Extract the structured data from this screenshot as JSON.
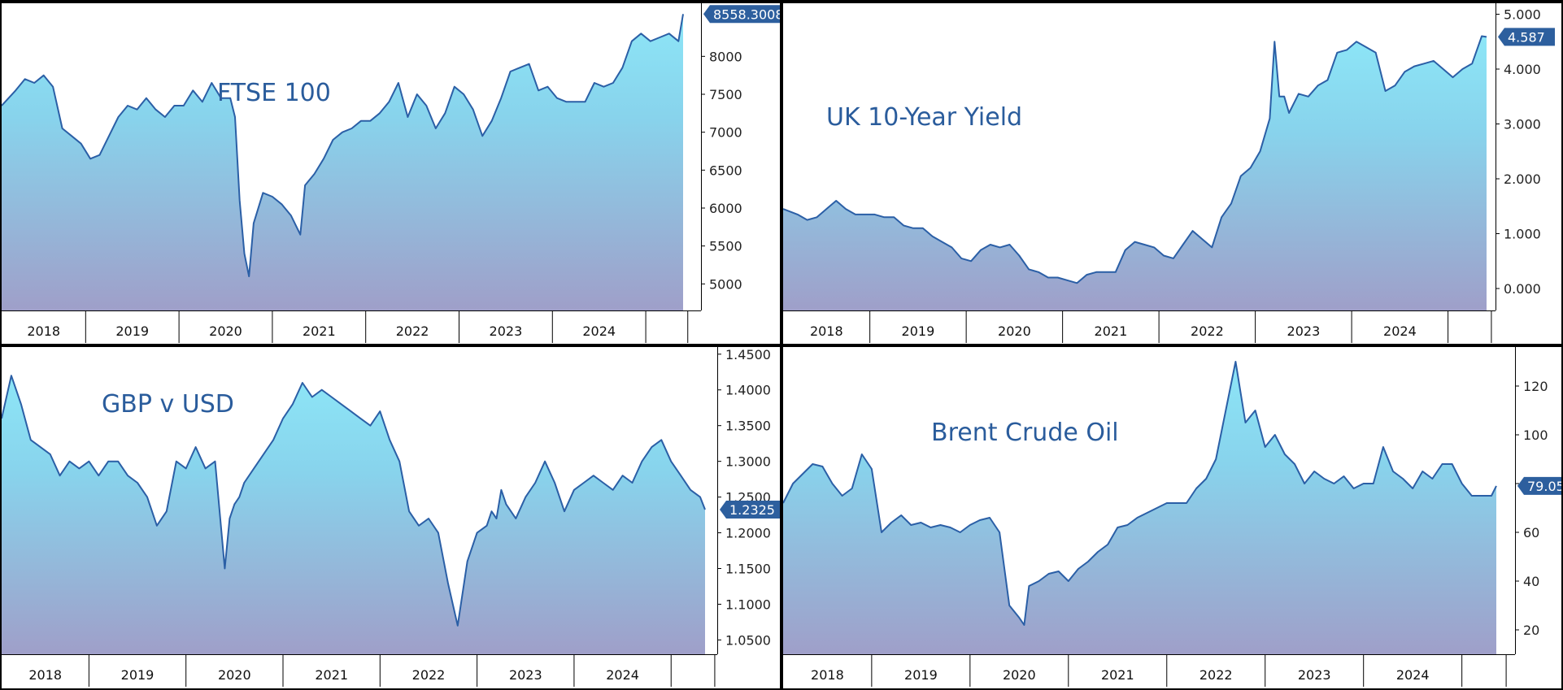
{
  "chart_data": [
    {
      "id": "ftse",
      "type": "area",
      "title": "FTSE 100",
      "yticks": [
        5000,
        5500,
        6000,
        6500,
        7000,
        7500,
        8000
      ],
      "ylim": [
        4650,
        8700
      ],
      "ytick_decimals": 0,
      "years": [
        "2018",
        "2019",
        "2020",
        "2021",
        "2022",
        "2023",
        "2024"
      ],
      "last_value_label": "8558.3008",
      "x": [
        2017.6,
        2017.75,
        2017.85,
        2017.95,
        2018.05,
        2018.15,
        2018.25,
        2018.35,
        2018.45,
        2018.55,
        2018.65,
        2018.75,
        2018.85,
        2018.95,
        2019.05,
        2019.15,
        2019.25,
        2019.35,
        2019.45,
        2019.55,
        2019.65,
        2019.75,
        2019.85,
        2019.95,
        2020.05,
        2020.1,
        2020.15,
        2020.2,
        2020.25,
        2020.3,
        2020.4,
        2020.5,
        2020.6,
        2020.7,
        2020.8,
        2020.85,
        2020.95,
        2021.05,
        2021.15,
        2021.25,
        2021.35,
        2021.45,
        2021.55,
        2021.65,
        2021.75,
        2021.85,
        2021.95,
        2022.05,
        2022.15,
        2022.25,
        2022.35,
        2022.45,
        2022.55,
        2022.65,
        2022.75,
        2022.85,
        2022.95,
        2023.05,
        2023.15,
        2023.25,
        2023.35,
        2023.45,
        2023.55,
        2023.65,
        2023.75,
        2023.85,
        2023.95,
        2024.05,
        2024.15,
        2024.25,
        2024.35,
        2024.45,
        2024.55,
        2024.65,
        2024.75,
        2024.85,
        2024.9
      ],
      "y": [
        7350,
        7550,
        7700,
        7650,
        7750,
        7600,
        7050,
        6950,
        6850,
        6650,
        6700,
        6950,
        7200,
        7350,
        7300,
        7450,
        7300,
        7200,
        7350,
        7350,
        7550,
        7400,
        7650,
        7450,
        7450,
        7200,
        6100,
        5400,
        5100,
        5800,
        6200,
        6150,
        6050,
        5900,
        5650,
        6300,
        6450,
        6650,
        6900,
        7000,
        7050,
        7150,
        7150,
        7250,
        7400,
        7650,
        7200,
        7500,
        7350,
        7050,
        7250,
        7600,
        7500,
        7300,
        6950,
        7150,
        7450,
        7800,
        7850,
        7900,
        7550,
        7600,
        7450,
        7400,
        7400,
        7400,
        7650,
        7600,
        7650,
        7850,
        8200,
        8300,
        8200,
        8250,
        8300,
        8200,
        8558
      ]
    },
    {
      "id": "gilt",
      "type": "area",
      "title": "UK 10-Year Yield",
      "yticks": [
        0,
        1,
        2,
        3,
        4,
        5
      ],
      "ylim": [
        -0.4,
        5.2
      ],
      "ytick_decimals": 3,
      "years": [
        "2018",
        "2019",
        "2020",
        "2021",
        "2022",
        "2023",
        "2024"
      ],
      "last_value_label": "4.587",
      "x": [
        2017.6,
        2017.75,
        2017.85,
        2017.95,
        2018.05,
        2018.15,
        2018.25,
        2018.35,
        2018.45,
        2018.55,
        2018.65,
        2018.75,
        2018.85,
        2018.95,
        2019.05,
        2019.15,
        2019.25,
        2019.35,
        2019.45,
        2019.55,
        2019.65,
        2019.75,
        2019.85,
        2019.95,
        2020.05,
        2020.15,
        2020.25,
        2020.35,
        2020.45,
        2020.55,
        2020.65,
        2020.75,
        2020.85,
        2020.95,
        2021.05,
        2021.15,
        2021.25,
        2021.35,
        2021.45,
        2021.55,
        2021.65,
        2021.75,
        2021.85,
        2021.95,
        2022.05,
        2022.15,
        2022.25,
        2022.35,
        2022.45,
        2022.55,
        2022.65,
        2022.7,
        2022.75,
        2022.8,
        2022.85,
        2022.95,
        2023.05,
        2023.15,
        2023.25,
        2023.35,
        2023.45,
        2023.55,
        2023.65,
        2023.75,
        2023.85,
        2023.95,
        2024.05,
        2024.15,
        2024.25,
        2024.35,
        2024.45,
        2024.55,
        2024.65,
        2024.75,
        2024.85,
        2024.9
      ],
      "y": [
        1.45,
        1.35,
        1.25,
        1.3,
        1.45,
        1.6,
        1.45,
        1.35,
        1.35,
        1.35,
        1.3,
        1.3,
        1.15,
        1.1,
        1.1,
        0.95,
        0.85,
        0.75,
        0.55,
        0.5,
        0.7,
        0.8,
        0.75,
        0.8,
        0.6,
        0.35,
        0.3,
        0.2,
        0.2,
        0.15,
        0.1,
        0.25,
        0.3,
        0.3,
        0.3,
        0.7,
        0.85,
        0.8,
        0.75,
        0.6,
        0.55,
        0.8,
        1.05,
        0.9,
        0.75,
        1.3,
        1.55,
        2.05,
        2.2,
        2.5,
        3.1,
        4.5,
        3.5,
        3.5,
        3.2,
        3.55,
        3.5,
        3.7,
        3.8,
        4.3,
        4.35,
        4.5,
        4.4,
        4.3,
        3.6,
        3.7,
        3.95,
        4.05,
        4.1,
        4.15,
        4.0,
        3.85,
        4.0,
        4.1,
        4.6,
        4.587
      ]
    },
    {
      "id": "gbpusd",
      "type": "area",
      "title": "GBP v USD",
      "yticks": [
        1.05,
        1.1,
        1.15,
        1.2,
        1.25,
        1.3,
        1.35,
        1.4,
        1.45
      ],
      "ylim": [
        1.03,
        1.46
      ],
      "ytick_decimals": 4,
      "years": [
        "2018",
        "2019",
        "2020",
        "2021",
        "2022",
        "2023",
        "2024"
      ],
      "last_value_label": "1.2325",
      "x": [
        2017.6,
        2017.7,
        2017.8,
        2017.9,
        2018.0,
        2018.1,
        2018.2,
        2018.3,
        2018.4,
        2018.5,
        2018.6,
        2018.7,
        2018.8,
        2018.9,
        2019.0,
        2019.1,
        2019.2,
        2019.3,
        2019.4,
        2019.5,
        2019.6,
        2019.7,
        2019.8,
        2019.9,
        2019.95,
        2020.0,
        2020.05,
        2020.1,
        2020.2,
        2020.3,
        2020.4,
        2020.5,
        2020.6,
        2020.7,
        2020.8,
        2020.9,
        2021.0,
        2021.1,
        2021.2,
        2021.3,
        2021.4,
        2021.5,
        2021.6,
        2021.7,
        2021.8,
        2021.9,
        2022.0,
        2022.1,
        2022.2,
        2022.3,
        2022.4,
        2022.5,
        2022.6,
        2022.65,
        2022.7,
        2022.75,
        2022.8,
        2022.9,
        2023.0,
        2023.1,
        2023.2,
        2023.3,
        2023.4,
        2023.5,
        2023.6,
        2023.7,
        2023.8,
        2023.9,
        2024.0,
        2024.1,
        2024.2,
        2024.3,
        2024.4,
        2024.5,
        2024.6,
        2024.7,
        2024.8,
        2024.85
      ],
      "y": [
        1.36,
        1.42,
        1.38,
        1.33,
        1.32,
        1.31,
        1.28,
        1.3,
        1.29,
        1.3,
        1.28,
        1.3,
        1.3,
        1.28,
        1.27,
        1.25,
        1.21,
        1.23,
        1.3,
        1.29,
        1.32,
        1.29,
        1.3,
        1.15,
        1.22,
        1.24,
        1.25,
        1.27,
        1.29,
        1.31,
        1.33,
        1.36,
        1.38,
        1.41,
        1.39,
        1.4,
        1.39,
        1.38,
        1.37,
        1.36,
        1.35,
        1.37,
        1.33,
        1.3,
        1.23,
        1.21,
        1.22,
        1.2,
        1.13,
        1.07,
        1.16,
        1.2,
        1.21,
        1.23,
        1.22,
        1.26,
        1.24,
        1.22,
        1.25,
        1.27,
        1.3,
        1.27,
        1.23,
        1.26,
        1.27,
        1.28,
        1.27,
        1.26,
        1.28,
        1.27,
        1.3,
        1.32,
        1.33,
        1.3,
        1.28,
        1.26,
        1.25,
        1.2325
      ]
    },
    {
      "id": "brent",
      "type": "area",
      "title": "Brent Crude Oil",
      "yticks": [
        20,
        40,
        60,
        80,
        100,
        120
      ],
      "ylim": [
        10,
        136
      ],
      "ytick_decimals": 0,
      "years": [
        "2018",
        "2019",
        "2020",
        "2021",
        "2022",
        "2023",
        "2024"
      ],
      "last_value_label": "79.05",
      "x": [
        2017.6,
        2017.7,
        2017.8,
        2017.9,
        2018.0,
        2018.1,
        2018.2,
        2018.3,
        2018.4,
        2018.5,
        2018.6,
        2018.7,
        2018.8,
        2018.9,
        2019.0,
        2019.1,
        2019.2,
        2019.3,
        2019.4,
        2019.5,
        2019.6,
        2019.7,
        2019.8,
        2019.9,
        2020.0,
        2020.05,
        2020.1,
        2020.2,
        2020.3,
        2020.4,
        2020.5,
        2020.6,
        2020.7,
        2020.8,
        2020.9,
        2021.0,
        2021.1,
        2021.2,
        2021.3,
        2021.4,
        2021.5,
        2021.6,
        2021.7,
        2021.8,
        2021.9,
        2022.0,
        2022.1,
        2022.2,
        2022.3,
        2022.4,
        2022.5,
        2022.6,
        2022.7,
        2022.8,
        2022.9,
        2023.0,
        2023.1,
        2023.2,
        2023.3,
        2023.4,
        2023.5,
        2023.6,
        2023.7,
        2023.8,
        2023.9,
        2024.0,
        2024.1,
        2024.2,
        2024.3,
        2024.4,
        2024.5,
        2024.6,
        2024.7,
        2024.8,
        2024.85
      ],
      "y": [
        72,
        80,
        84,
        88,
        87,
        80,
        75,
        78,
        92,
        86,
        60,
        64,
        67,
        63,
        64,
        62,
        63,
        62,
        60,
        63,
        65,
        66,
        60,
        30,
        25,
        22,
        38,
        40,
        43,
        44,
        40,
        45,
        48,
        52,
        55,
        62,
        63,
        66,
        68,
        70,
        72,
        72,
        72,
        78,
        82,
        90,
        110,
        130,
        105,
        110,
        95,
        100,
        92,
        88,
        80,
        85,
        82,
        80,
        83,
        78,
        80,
        80,
        95,
        85,
        82,
        78,
        85,
        82,
        88,
        88,
        80,
        75,
        75,
        75,
        79.05
      ]
    }
  ]
}
